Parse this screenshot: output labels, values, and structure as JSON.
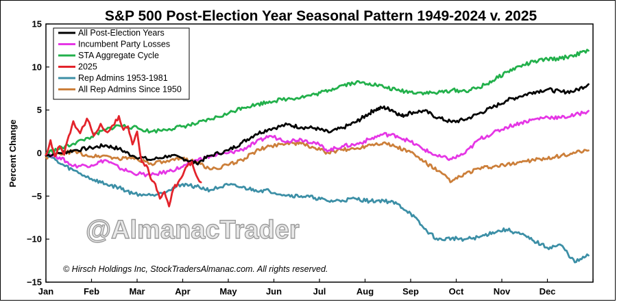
{
  "chart_data": {
    "type": "line",
    "title": "S&P 500 Post-Election Year Seasonal Pattern 1949-2024 v. 2025",
    "xlabel": "",
    "ylabel": "Percent Change",
    "x_tick_labels": [
      "Jan",
      "Feb",
      "Mar",
      "Apr",
      "May",
      "Jun",
      "Jul",
      "Aug",
      "Sep",
      "Oct",
      "Nov",
      "Dec"
    ],
    "x_unit": "month of year (0 = start of Jan, 12 = end of Dec)",
    "xlim": [
      0,
      12
    ],
    "ylim": [
      -15,
      15
    ],
    "y_ticks": [
      15,
      10,
      5,
      0,
      -5,
      -10,
      -15
    ],
    "y_tick_labels": [
      "15",
      "10",
      "5",
      "0",
      "−5",
      "−10",
      "−15"
    ],
    "legend_position": "top-left",
    "grid": false,
    "series": [
      {
        "name": "All Post-Election Years",
        "color": "#000000",
        "x": [
          0,
          0.3,
          0.6,
          1,
          1.3,
          1.6,
          1.9,
          2.3,
          2.7,
          3,
          3.3,
          3.6,
          4,
          4.3,
          4.6,
          4.9,
          5.3,
          5.6,
          5.9,
          6.2,
          6.5,
          6.8,
          7.0,
          7.2,
          7.4,
          7.6,
          7.8,
          8.0,
          8.3,
          8.6,
          8.9,
          9.2,
          9.5,
          9.8,
          10.1,
          10.4,
          10.7,
          11,
          11.3,
          11.6,
          11.9
        ],
        "values": [
          -0.3,
          0,
          0.3,
          0.6,
          0.9,
          0.5,
          -0.3,
          -0.8,
          -0.3,
          -0.6,
          -1.2,
          -0.3,
          0.3,
          1.2,
          2.2,
          2.8,
          3.3,
          3.0,
          2.9,
          2.4,
          2.9,
          3.6,
          4.3,
          5.0,
          5.3,
          5.0,
          4.3,
          4.7,
          4.9,
          4.1,
          3.6,
          3.9,
          4.6,
          5.3,
          6.1,
          6.6,
          7.1,
          7.4,
          7.1,
          7.2,
          8.0
        ]
      },
      {
        "name": "Incumbent Party Losses",
        "color": "#e536e5",
        "x": [
          0,
          0.3,
          0.6,
          1,
          1.3,
          1.6,
          1.9,
          2.3,
          2.7,
          3,
          3.3,
          3.6,
          4,
          4.3,
          4.6,
          4.9,
          5.3,
          5.6,
          5.9,
          6.2,
          6.5,
          6.8,
          7.1,
          7.4,
          7.7,
          8.0,
          8.3,
          8.6,
          8.9,
          9.2,
          9.5,
          9.8,
          10.1,
          10.4,
          10.7,
          11,
          11.3,
          11.6,
          11.9
        ],
        "values": [
          0,
          -0.5,
          -1.5,
          -1.4,
          -0.8,
          -1.7,
          -2.3,
          -2.6,
          -2.1,
          -1.6,
          -0.8,
          -0.4,
          0,
          0.4,
          1.2,
          2.0,
          1.4,
          1.6,
          1.2,
          0.3,
          0.8,
          1.0,
          1.6,
          2.2,
          2.0,
          1.3,
          0.4,
          -0.4,
          -0.7,
          0,
          1.6,
          2.3,
          3.0,
          3.5,
          3.9,
          4.2,
          4.1,
          4.4,
          4.9
        ]
      },
      {
        "name": "STA Aggregate Cycle",
        "color": "#22b04b",
        "x": [
          0,
          0.3,
          0.6,
          1,
          1.3,
          1.6,
          1.9,
          2.3,
          2.7,
          3,
          3.3,
          3.6,
          4,
          4.3,
          4.6,
          4.9,
          5.3,
          5.6,
          5.9,
          6.2,
          6.5,
          6.8,
          7.1,
          7.4,
          7.7,
          8.0,
          8.3,
          8.6,
          8.9,
          9.2,
          9.5,
          9.8,
          10.1,
          10.4,
          10.7,
          11,
          11.3,
          11.6,
          11.9
        ],
        "values": [
          0,
          0.5,
          1.1,
          1.9,
          2.7,
          3.2,
          3.0,
          2.5,
          2.8,
          3.1,
          3.4,
          3.9,
          4.6,
          5.3,
          5.6,
          6.0,
          6.3,
          6.5,
          6.8,
          7.3,
          7.9,
          8.2,
          8.1,
          7.7,
          7.3,
          7.1,
          7.0,
          7.0,
          7.3,
          7.2,
          7.6,
          8.4,
          9.4,
          10.1,
          10.6,
          10.9,
          11.0,
          11.4,
          11.9
        ]
      },
      {
        "name": "2025",
        "color": "#e3232b",
        "x": [
          0,
          0.1,
          0.2,
          0.3,
          0.4,
          0.5,
          0.6,
          0.75,
          0.9,
          1.05,
          1.2,
          1.35,
          1.5,
          1.6,
          1.7,
          1.8,
          1.9,
          2.0,
          2.1,
          2.2,
          2.3,
          2.4,
          2.5,
          2.6,
          2.7,
          2.8,
          2.9,
          3.0,
          3.1,
          3.2,
          3.3,
          3.4
        ],
        "values": [
          -0.2,
          1.5,
          -0.4,
          0.8,
          -0.2,
          2.0,
          3.7,
          2.3,
          4.0,
          2.0,
          3.4,
          2.4,
          3.3,
          4.3,
          2.7,
          3.1,
          1.0,
          2.5,
          -1.0,
          -1.4,
          -3.0,
          -3.6,
          -5.3,
          -4.5,
          -6.2,
          -4.1,
          -3.4,
          -2.6,
          -1.5,
          -1.0,
          -2.6,
          -3.4
        ]
      },
      {
        "name": "Rep Admins 1953-1981",
        "color": "#3c8fa6",
        "x": [
          0,
          0.3,
          0.6,
          1,
          1.3,
          1.6,
          1.9,
          2.3,
          2.7,
          3,
          3.3,
          3.6,
          4,
          4.3,
          4.6,
          4.9,
          5.3,
          5.6,
          5.9,
          6.2,
          6.5,
          6.8,
          7.1,
          7.4,
          7.7,
          8.0,
          8.3,
          8.6,
          8.9,
          9.2,
          9.5,
          9.8,
          10.1,
          10.4,
          10.7,
          11,
          11.3,
          11.6,
          11.9
        ],
        "values": [
          0,
          -1.2,
          -2.0,
          -3.0,
          -3.6,
          -4.0,
          -4.7,
          -4.9,
          -4.3,
          -3.6,
          -3.9,
          -4.3,
          -3.7,
          -4.0,
          -4.3,
          -4.4,
          -4.9,
          -5.0,
          -5.2,
          -5.6,
          -5.5,
          -5.3,
          -5.6,
          -5.5,
          -5.9,
          -7.0,
          -8.8,
          -10.1,
          -9.9,
          -10.0,
          -9.8,
          -9.2,
          -8.9,
          -9.4,
          -10.2,
          -11.0,
          -10.7,
          -12.7,
          -11.9
        ]
      },
      {
        "name": "All Rep Admins Since 1950",
        "color": "#cc7f3a",
        "x": [
          0,
          0.3,
          0.6,
          1,
          1.3,
          1.6,
          1.9,
          2.3,
          2.7,
          3,
          3.3,
          3.6,
          4,
          4.3,
          4.6,
          4.9,
          5.3,
          5.6,
          5.9,
          6.2,
          6.5,
          6.8,
          7.1,
          7.4,
          7.7,
          8.0,
          8.3,
          8.6,
          8.9,
          9.2,
          9.5,
          9.8,
          10.1,
          10.4,
          10.7,
          11,
          11.3,
          11.6,
          11.9
        ],
        "values": [
          -0.5,
          -0.1,
          0.2,
          -0.4,
          -0.3,
          -0.7,
          -0.5,
          -1.2,
          -1.0,
          -0.6,
          -1.0,
          -1.9,
          -1.4,
          -0.8,
          0.2,
          0.8,
          1.2,
          1.1,
          0.6,
          0,
          0.4,
          0.5,
          1.0,
          1.2,
          0.7,
          0.1,
          -1.0,
          -2.1,
          -3.3,
          -2.4,
          -1.8,
          -1.6,
          -1.4,
          -1.0,
          -0.8,
          -0.7,
          -0.3,
          0,
          0.3
        ]
      }
    ]
  },
  "copyright": "© Hirsch Holdings Inc, StockTradersAlmanac.com. All rights reserved.",
  "watermark": "@AlmanacTrader"
}
